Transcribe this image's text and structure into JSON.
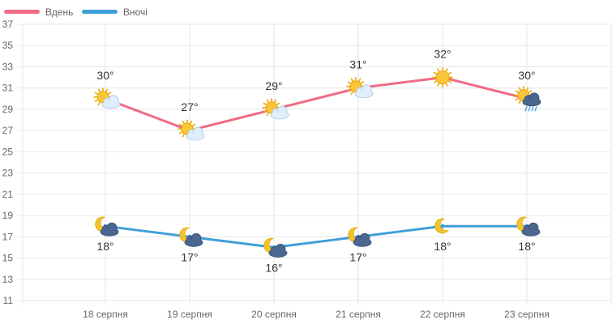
{
  "chart_data": {
    "type": "line",
    "title": "",
    "xlabel": "",
    "ylabel": "",
    "categories": [
      "18 серпня",
      "19 серпня",
      "20 серпня",
      "21 серпня",
      "22 серпня",
      "23 серпня"
    ],
    "ylim": [
      11,
      37
    ],
    "yticks": [
      11,
      13,
      15,
      17,
      19,
      21,
      23,
      25,
      27,
      29,
      31,
      33,
      35,
      37
    ],
    "grid": true,
    "legend_position": "top-left",
    "series": [
      {
        "name": "Вдень",
        "color": "#f06b85",
        "values": [
          30,
          27,
          29,
          31,
          32,
          30
        ],
        "labels": [
          "30°",
          "27°",
          "29°",
          "31°",
          "32°",
          "30°"
        ],
        "icons": [
          "sun-cloud-icon",
          "sun-cloud-icon",
          "sun-cloud-icon",
          "sun-cloud-icon",
          "sun-icon",
          "sun-rain-cloud-icon"
        ]
      },
      {
        "name": "Вночі",
        "color": "#3f9fd8",
        "values": [
          18,
          17,
          16,
          17,
          18,
          18
        ],
        "labels": [
          "18°",
          "17°",
          "16°",
          "17°",
          "18°",
          "18°"
        ],
        "icons": [
          "moon-cloud-icon",
          "moon-cloud-icon",
          "moon-cloud-icon",
          "moon-cloud-icon",
          "moon-icon",
          "moon-cloud-icon"
        ]
      }
    ]
  }
}
